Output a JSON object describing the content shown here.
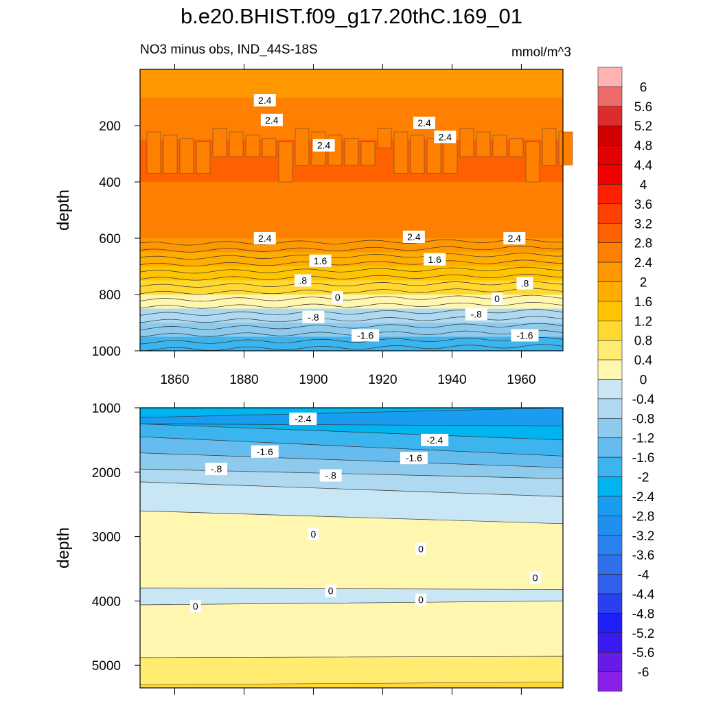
{
  "chart_data": {
    "type": "heatmap",
    "title": "b.e20.BHIST.f09_g17.20thC.169_01",
    "subtitle": "NO3 minus obs, IND_44S-18S",
    "units": "mmol/m^3",
    "ylabel": "depth",
    "x_ticks": [
      "1860",
      "1880",
      "1900",
      "1920",
      "1940",
      "1960"
    ],
    "x_range": [
      1850,
      1972
    ],
    "panels": [
      {
        "name": "upper",
        "ylim": [
          1000,
          0
        ],
        "y_ticks": [
          "200",
          "400",
          "600",
          "800",
          "1000"
        ],
        "depth_levels": [
          25,
          75,
          125,
          175,
          225,
          275,
          325,
          375,
          425,
          475,
          525,
          575,
          625,
          675,
          725,
          775,
          825,
          875,
          925,
          975
        ],
        "values_mmol_m3": [
          2.1,
          2.3,
          2.5,
          2.6,
          2.7,
          2.85,
          2.9,
          2.85,
          2.8,
          2.75,
          2.7,
          2.55,
          2.3,
          1.9,
          1.4,
          0.9,
          0.3,
          -0.4,
          -1.1,
          -1.7
        ],
        "contour_labels": [
          {
            "text": "2.4",
            "x": 1886,
            "y": 110
          },
          {
            "text": "2.4",
            "x": 1888,
            "y": 180
          },
          {
            "text": "2.4",
            "x": 1903,
            "y": 270
          },
          {
            "text": "2.4",
            "x": 1932,
            "y": 190
          },
          {
            "text": "2.4",
            "x": 1938,
            "y": 240
          },
          {
            "text": "2.4",
            "x": 1886,
            "y": 600
          },
          {
            "text": "2.4",
            "x": 1929,
            "y": 595
          },
          {
            "text": "2.4",
            "x": 1958,
            "y": 600
          },
          {
            "text": "1.6",
            "x": 1902,
            "y": 680
          },
          {
            "text": "1.6",
            "x": 1935,
            "y": 675
          },
          {
            "text": ".8",
            "x": 1897,
            "y": 750
          },
          {
            "text": ".8",
            "x": 1961,
            "y": 760
          },
          {
            "text": "0",
            "x": 1907,
            "y": 810
          },
          {
            "text": "0",
            "x": 1953,
            "y": 815
          },
          {
            "text": "-.8",
            "x": 1900,
            "y": 880
          },
          {
            "text": "-.8",
            "x": 1947,
            "y": 870
          },
          {
            "text": "-1.6",
            "x": 1915,
            "y": 945
          },
          {
            "text": "-1.6",
            "x": 1961,
            "y": 945
          }
        ]
      },
      {
        "name": "lower",
        "ylim": [
          5350,
          1000
        ],
        "y_ticks": [
          "1000",
          "2000",
          "3000",
          "4000",
          "5000"
        ],
        "contour_labels": [
          {
            "text": "-2.4",
            "x": 1897,
            "y": 1170
          },
          {
            "text": "-2.4",
            "x": 1935,
            "y": 1500
          },
          {
            "text": "-1.6",
            "x": 1886,
            "y": 1680
          },
          {
            "text": "-1.6",
            "x": 1929,
            "y": 1780
          },
          {
            "text": "-.8",
            "x": 1872,
            "y": 1950
          },
          {
            "text": "-.8",
            "x": 1905,
            "y": 2050
          },
          {
            "text": "0",
            "x": 1900,
            "y": 2960
          },
          {
            "text": "0",
            "x": 1931,
            "y": 3190
          },
          {
            "text": "0",
            "x": 1964,
            "y": 3640
          },
          {
            "text": "0",
            "x": 1905,
            "y": 3840
          },
          {
            "text": "0",
            "x": 1866,
            "y": 4080
          },
          {
            "text": "0",
            "x": 1931,
            "y": 3980
          }
        ]
      }
    ],
    "colorbar": {
      "labels": [
        "6",
        "5.6",
        "5.2",
        "4.8",
        "4.4",
        "4",
        "3.6",
        "3.2",
        "2.8",
        "2.4",
        "2",
        "1.6",
        "1.2",
        "0.8",
        "0.4",
        "0",
        "-0.4",
        "-0.8",
        "-1.2",
        "-1.6",
        "-2",
        "-2.4",
        "-2.8",
        "-3.2",
        "-3.6",
        "-4",
        "-4.4",
        "-4.8",
        "-5.2",
        "-5.6",
        "-6"
      ],
      "colors": [
        "#ffb3b3",
        "#ee6b6b",
        "#dc2c2c",
        "#d00000",
        "#e20000",
        "#f20000",
        "#ff2000",
        "#ff4000",
        "#ff6000",
        "#ff8000",
        "#ff9800",
        "#ffae00",
        "#ffc400",
        "#ffd830",
        "#ffec70",
        "#fff6b0",
        "#c8e6f4",
        "#aed9f0",
        "#8ecaec",
        "#66bcee",
        "#3cb4ee",
        "#00b4f0",
        "#1a9cf0",
        "#2090f0",
        "#2a82f0",
        "#3070ec",
        "#3060ec",
        "#2a40f0",
        "#1f1ff8",
        "#3a1af0",
        "#6a1ae8",
        "#8a20e8"
      ]
    }
  }
}
